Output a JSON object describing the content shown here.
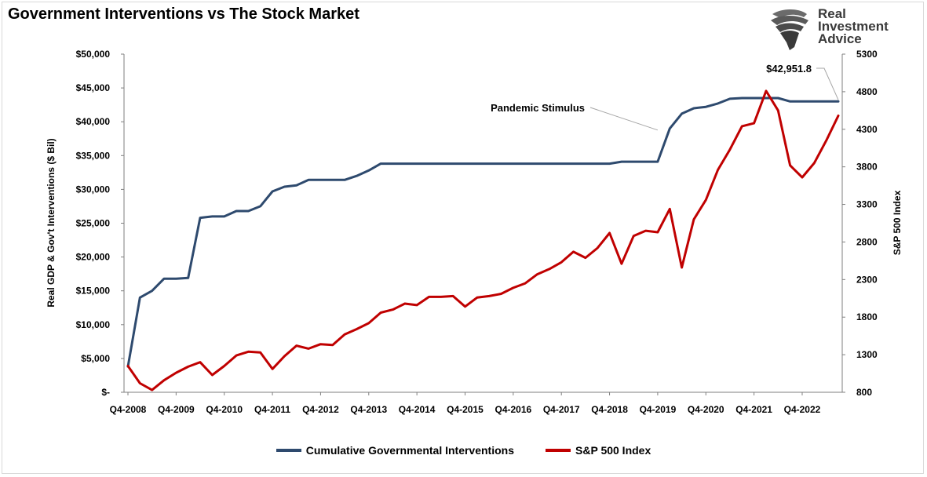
{
  "title": "Government Interventions vs The Stock Market",
  "logo": {
    "line1": "Real",
    "line2": "Investment",
    "line3": "Advice",
    "icon": "eagle-head-icon"
  },
  "colors": {
    "interventions": "#2e4a6e",
    "sp500": "#c00000",
    "axis": "#7f7f7f",
    "annotation_line": "#a6a6a6"
  },
  "chart_data": {
    "type": "line",
    "title": "Government Interventions vs The Stock Market",
    "xlabel": "",
    "ylabel": "Real GDP & Gov't Interventions ($ Bil)",
    "y2label": "S&P 500 Index",
    "ylim": [
      0,
      50000
    ],
    "y2lim": [
      800,
      5300
    ],
    "grid": false,
    "legend_position": "bottom",
    "x_tick_labels": [
      "Q4-2008",
      "Q4-2009",
      "Q4-2010",
      "Q4-2011",
      "Q4-2012",
      "Q4-2013",
      "Q4-2014",
      "Q4-2015",
      "Q4-2016",
      "Q4-2017",
      "Q4-2018",
      "Q4-2019",
      "Q4-2020",
      "Q4-2021",
      "Q4-2022"
    ],
    "y_tick_labels": [
      "$-",
      "$5,000",
      "$10,000",
      "$15,000",
      "$20,000",
      "$25,000",
      "$30,000",
      "$35,000",
      "$40,000",
      "$45,000",
      "$50,000"
    ],
    "y2_tick_labels": [
      "800",
      "1300",
      "1800",
      "2300",
      "2800",
      "3300",
      "3800",
      "4300",
      "4800",
      "5300"
    ],
    "x": [
      "Q4-2008",
      "Q1-2009",
      "Q2-2009",
      "Q3-2009",
      "Q4-2009",
      "Q1-2010",
      "Q2-2010",
      "Q3-2010",
      "Q4-2010",
      "Q1-2011",
      "Q2-2011",
      "Q3-2011",
      "Q4-2011",
      "Q1-2012",
      "Q2-2012",
      "Q3-2012",
      "Q4-2012",
      "Q1-2013",
      "Q2-2013",
      "Q3-2013",
      "Q4-2013",
      "Q1-2014",
      "Q2-2014",
      "Q3-2014",
      "Q4-2014",
      "Q1-2015",
      "Q2-2015",
      "Q3-2015",
      "Q4-2015",
      "Q1-2016",
      "Q2-2016",
      "Q3-2016",
      "Q4-2016",
      "Q1-2017",
      "Q2-2017",
      "Q3-2017",
      "Q4-2017",
      "Q1-2018",
      "Q2-2018",
      "Q3-2018",
      "Q4-2018",
      "Q1-2019",
      "Q2-2019",
      "Q3-2019",
      "Q4-2019",
      "Q1-2020",
      "Q2-2020",
      "Q3-2020",
      "Q4-2020",
      "Q1-2021",
      "Q2-2021",
      "Q3-2021",
      "Q4-2021",
      "Q1-2022",
      "Q2-2022",
      "Q3-2022",
      "Q4-2022",
      "Q1-2023",
      "Q2-2023",
      "Q3-2023"
    ],
    "series": [
      {
        "name": "Cumulative Governmental Interventions",
        "axis": "left",
        "values": [
          3800,
          14000,
          15000,
          16800,
          16800,
          16900,
          25800,
          26000,
          26000,
          26800,
          26800,
          27500,
          29700,
          30400,
          30600,
          31400,
          31400,
          31400,
          31400,
          32000,
          32800,
          33800,
          33800,
          33800,
          33800,
          33800,
          33800,
          33800,
          33800,
          33800,
          33800,
          33800,
          33800,
          33800,
          33800,
          33800,
          33800,
          33800,
          33800,
          33800,
          33800,
          34100,
          34100,
          34100,
          34100,
          39000,
          41200,
          42000,
          42200,
          42700,
          43400,
          43500,
          43500,
          43500,
          43500,
          43000,
          43000,
          43000,
          43000,
          43000
        ]
      },
      {
        "name": "S&P 500 Index",
        "axis": "right",
        "values": [
          1150,
          920,
          830,
          960,
          1060,
          1140,
          1200,
          1030,
          1150,
          1290,
          1340,
          1330,
          1110,
          1280,
          1420,
          1380,
          1440,
          1430,
          1570,
          1640,
          1720,
          1860,
          1900,
          1980,
          1960,
          2070,
          2070,
          2080,
          1940,
          2060,
          2080,
          2110,
          2190,
          2250,
          2370,
          2440,
          2530,
          2670,
          2590,
          2720,
          2920,
          2510,
          2880,
          2950,
          2930,
          3240,
          2460,
          3100,
          3360,
          3760,
          4030,
          4340,
          4380,
          4810,
          4550,
          3820,
          3660,
          3850,
          4150,
          4480
        ]
      }
    ],
    "annotations": [
      {
        "text": "Pandemic Stimulus",
        "target_x": "Q4-2019"
      },
      {
        "text": "$42,951.8",
        "target_x": "Q3-2023"
      }
    ]
  },
  "legend": [
    {
      "label": "Cumulative Governmental Interventions"
    },
    {
      "label": "S&P 500 Index"
    }
  ]
}
